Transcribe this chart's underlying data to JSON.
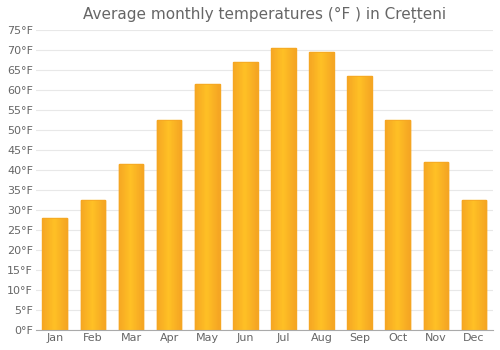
{
  "title": "Average monthly temperatures (°F ) in Crețteni",
  "months": [
    "Jan",
    "Feb",
    "Mar",
    "Apr",
    "May",
    "Jun",
    "Jul",
    "Aug",
    "Sep",
    "Oct",
    "Nov",
    "Dec"
  ],
  "values": [
    28,
    32.5,
    41.5,
    52.5,
    61.5,
    67,
    70.5,
    69.5,
    63.5,
    52.5,
    42,
    32.5
  ],
  "bar_color_center": "#FFC125",
  "bar_color_edge": "#F5A623",
  "background_color": "#FFFFFF",
  "grid_color": "#E8E8E8",
  "text_color": "#666666",
  "title_fontsize": 11,
  "tick_fontsize": 8,
  "ylim": [
    0,
    75
  ],
  "yticks": [
    0,
    5,
    10,
    15,
    20,
    25,
    30,
    35,
    40,
    45,
    50,
    55,
    60,
    65,
    70,
    75
  ]
}
